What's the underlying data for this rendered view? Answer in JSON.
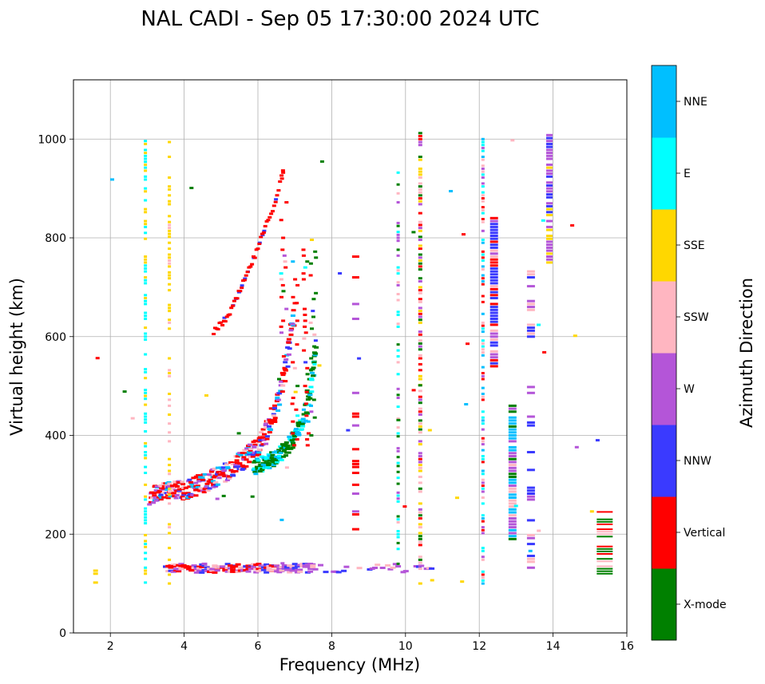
{
  "chart_data": {
    "type": "scatter",
    "title": "NAL CADI - Sep 05 17:30:00 2024 UTC",
    "xlabel": "Frequency (MHz)",
    "ylabel": "Virtual height (km)",
    "xlim": [
      1,
      16
    ],
    "ylim": [
      0,
      1120
    ],
    "xticks": [
      2,
      4,
      6,
      8,
      10,
      12,
      14,
      16
    ],
    "yticks": [
      0,
      200,
      400,
      600,
      800,
      1000
    ],
    "grid": true,
    "colorbar": {
      "label": "Azimuth Direction",
      "categories": [
        {
          "name": "X-mode",
          "color": "#008000"
        },
        {
          "name": "Vertical",
          "color": "#ff0000"
        },
        {
          "name": "NNW",
          "color": "#3a3aff"
        },
        {
          "name": "W",
          "color": "#b455d8"
        },
        {
          "name": "SSW",
          "color": "#ffb6c1"
        },
        {
          "name": "SSE",
          "color": "#ffd700"
        },
        {
          "name": "E",
          "color": "#00ffff"
        },
        {
          "name": "NNE",
          "color": "#00bfff"
        }
      ]
    },
    "series": [
      {
        "name": "E-layer trace (~130 km)",
        "x_range": [
          3.5,
          10.9
        ],
        "y_range": [
          120,
          140
        ]
      },
      {
        "name": "F-layer O trace",
        "x": [
          3.1,
          4.0,
          4.6,
          5.1,
          5.6,
          6.0,
          6.3,
          6.6,
          6.8,
          7.0
        ],
        "y": [
          275,
          285,
          300,
          320,
          345,
          375,
          410,
          480,
          560,
          650
        ]
      },
      {
        "name": "F-layer X trace",
        "x": [
          5.9,
          6.5,
          6.9,
          7.2,
          7.4,
          7.6
        ],
        "y": [
          330,
          350,
          380,
          420,
          480,
          580
        ]
      },
      {
        "name": "F-layer 2-hop trace",
        "x": [
          4.8,
          5.2,
          5.5,
          5.9,
          6.2,
          6.5,
          6.7
        ],
        "y": [
          610,
          640,
          690,
          760,
          820,
          880,
          940
        ]
      },
      {
        "name": "Interference columns (MHz)",
        "x": [
          1.6,
          2.95,
          3.6,
          8.65,
          9.8,
          10.4,
          12.1,
          12.4,
          12.9,
          13.4,
          13.9
        ]
      }
    ]
  }
}
